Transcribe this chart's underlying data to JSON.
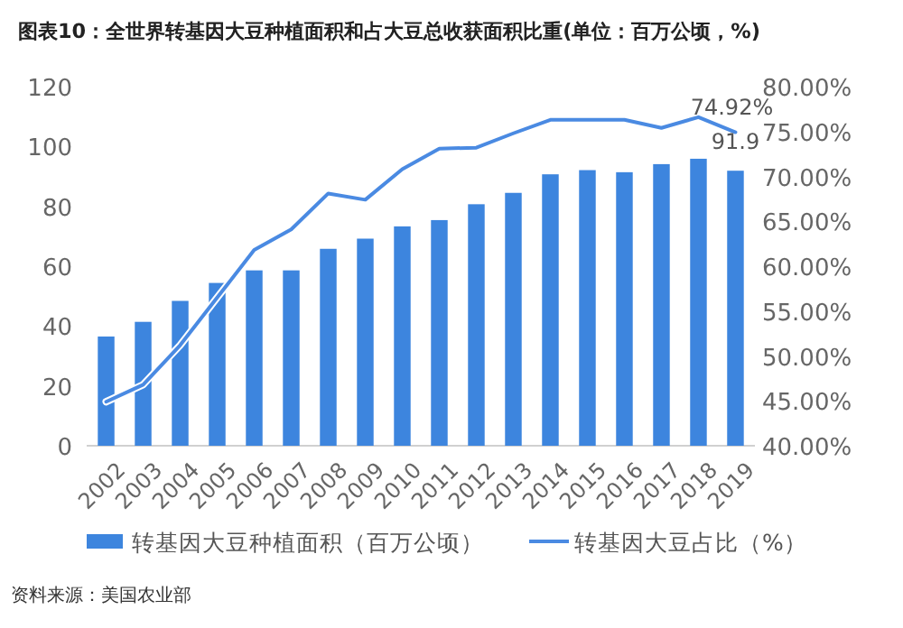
{
  "chart_data": {
    "type": "bar",
    "title": "图表10：全世界转基因大豆种植面积和占大豆总收获面积比重(单位：百万公顷，%)",
    "categories": [
      "2002",
      "2003",
      "2004",
      "2005",
      "2006",
      "2007",
      "2008",
      "2009",
      "2010",
      "2011",
      "2012",
      "2013",
      "2014",
      "2015",
      "2016",
      "2017",
      "2018",
      "2019"
    ],
    "series": [
      {
        "name": "转基因大豆种植面积（百万公顷）",
        "color": "#3d85de",
        "values": [
          36.5,
          41.4,
          48.4,
          54.4,
          58.6,
          58.6,
          65.8,
          69.2,
          73.3,
          75.4,
          80.7,
          84.5,
          90.7,
          92.1,
          91.4,
          94.1,
          95.9,
          91.9
        ],
        "value_labels": [
          null,
          null,
          null,
          null,
          null,
          null,
          null,
          null,
          null,
          null,
          null,
          null,
          null,
          null,
          null,
          null,
          null,
          "91.9"
        ]
      },
      {
        "name": "转基因大豆占比（%）",
        "type": "line",
        "axis": "y2",
        "color": "#4a8ae2",
        "values": [
          44.9,
          46.8,
          51.2,
          56.5,
          61.8,
          64.1,
          68.1,
          67.4,
          70.8,
          73.1,
          73.2,
          74.8,
          76.3,
          76.3,
          76.3,
          75.4,
          76.6,
          74.92
        ],
        "value_labels": [
          null,
          null,
          null,
          null,
          null,
          null,
          null,
          null,
          null,
          null,
          null,
          null,
          null,
          null,
          null,
          null,
          null,
          "74.92%"
        ]
      }
    ],
    "ylim": [
      0,
      120
    ],
    "yticks": [
      0,
      20,
      40,
      60,
      80,
      100,
      120
    ],
    "y2lim": [
      40,
      80
    ],
    "y2ticks": [
      {
        "value": 40,
        "label": "40.00%"
      },
      {
        "value": 45,
        "label": "45.00%"
      },
      {
        "value": 50,
        "label": "50.00%"
      },
      {
        "value": 55,
        "label": "55.00%"
      },
      {
        "value": 60,
        "label": "60.00%"
      },
      {
        "value": 65,
        "label": "65.00%"
      },
      {
        "value": 70,
        "label": "70.00%"
      },
      {
        "value": 75,
        "label": "75.00%"
      },
      {
        "value": 80,
        "label": "80.00%"
      }
    ],
    "legend": "bottom",
    "marker": "none",
    "annotations": [
      "资料来源：美国农业部"
    ]
  }
}
